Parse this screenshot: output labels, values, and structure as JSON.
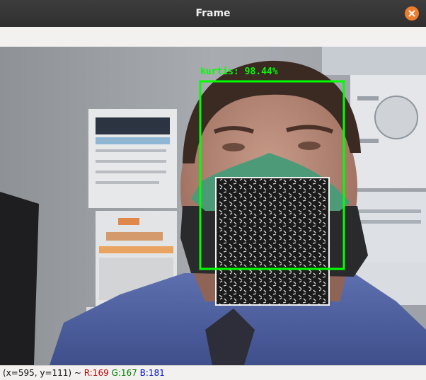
{
  "window": {
    "title": "Frame"
  },
  "detection": {
    "label": "kurtis: 98.44%",
    "box_color": "#00ff00"
  },
  "statusbar": {
    "coords": "(x=595, y=111) ~ ",
    "r": "R:169",
    "g": "G:167",
    "b": "B:181"
  },
  "icons": {
    "close": "close-icon"
  },
  "colors": {
    "titlebar": "#333333",
    "close_button": "#ef7b2c"
  }
}
